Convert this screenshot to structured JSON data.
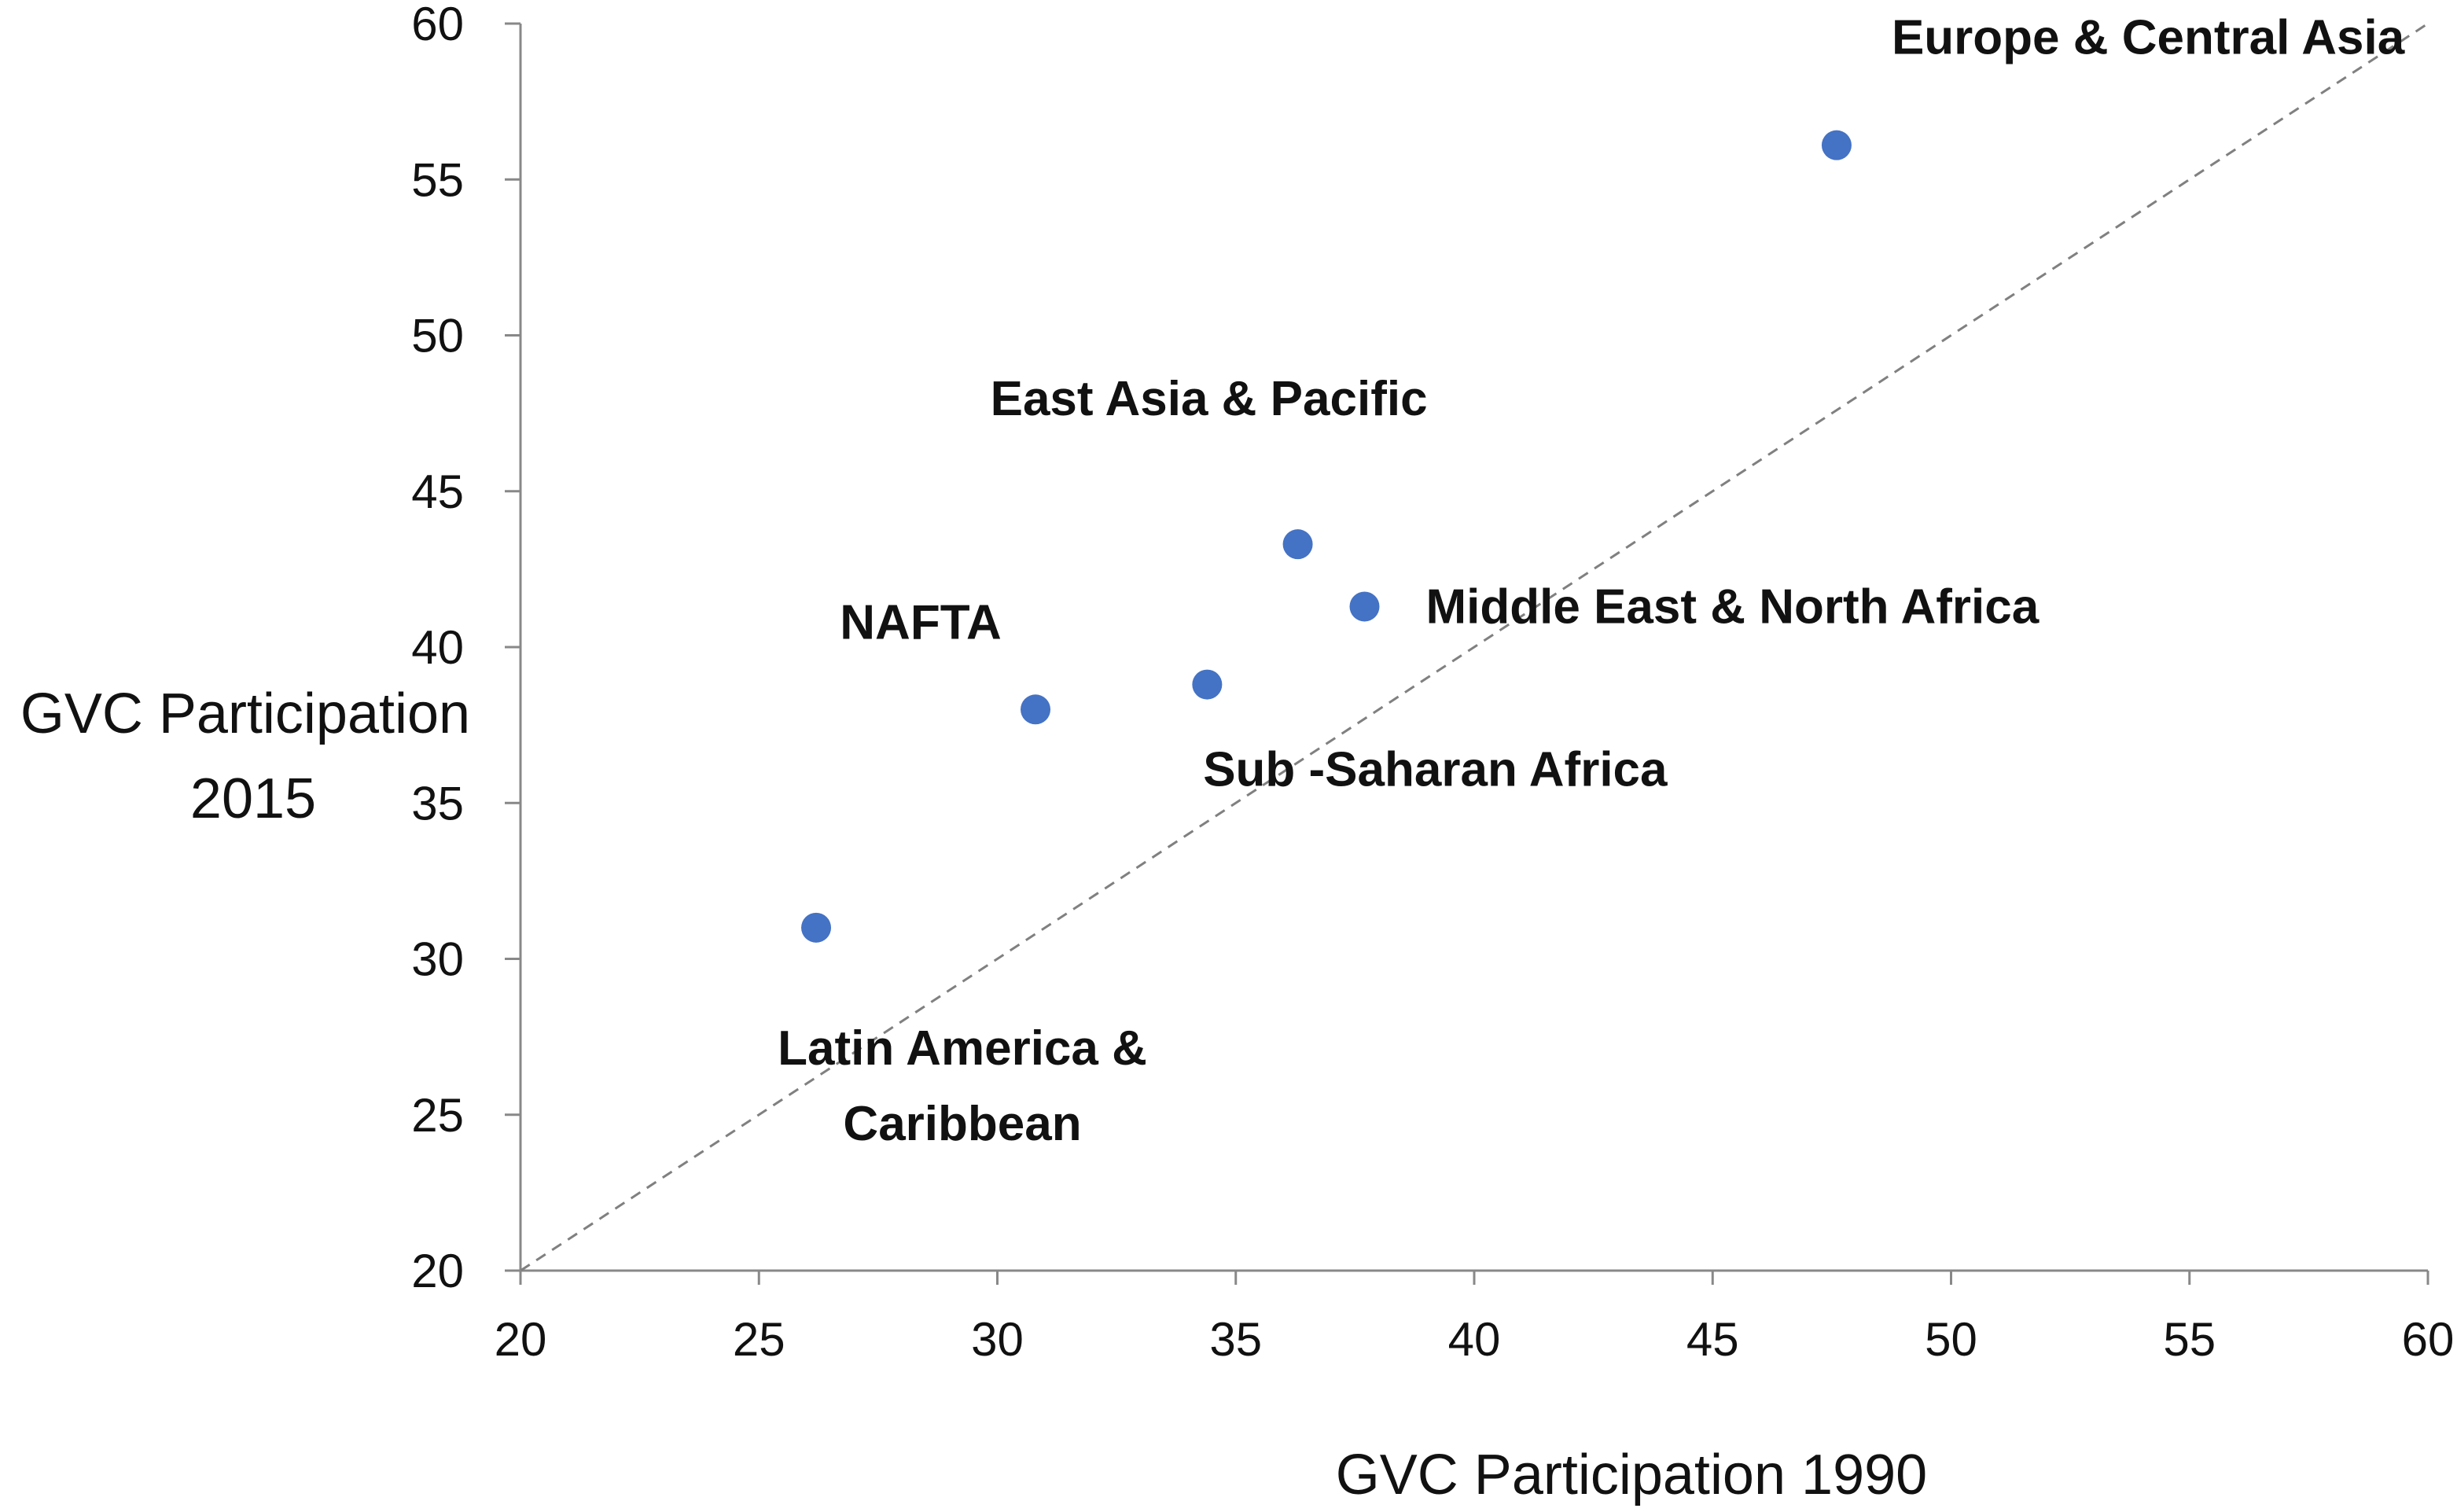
{
  "chart_data": {
    "type": "scatter",
    "xlabel": "GVC Participation 1990",
    "ylabel": [
      "GVC Participation",
      "2015"
    ],
    "xlim": [
      20,
      60
    ],
    "ylim": [
      20,
      60
    ],
    "xticks": [
      20,
      25,
      30,
      35,
      40,
      45,
      50,
      55,
      60
    ],
    "yticks": [
      20,
      25,
      30,
      35,
      40,
      45,
      50,
      55,
      60
    ],
    "grid": false,
    "reference_line": {
      "style": "dashed",
      "from": [
        20,
        20
      ],
      "to": [
        60,
        60
      ]
    },
    "marker_color": "#4472c4",
    "points": [
      {
        "label": [
          "Europe & Central Asia"
        ],
        "x": 47.6,
        "y": 56.1
      },
      {
        "label": [
          "East Asia & Pacific"
        ],
        "x": 36.3,
        "y": 43.3
      },
      {
        "label": [
          "Middle East & North Africa"
        ],
        "x": 37.7,
        "y": 41.3
      },
      {
        "label": [
          "NAFTA"
        ],
        "x": 30.8,
        "y": 38.0
      },
      {
        "label": [
          "Sub -Saharan Africa"
        ],
        "x": 34.4,
        "y": 38.8
      },
      {
        "label": [
          "Latin America &",
          "Caribbean"
        ],
        "x": 26.2,
        "y": 31.0
      }
    ]
  }
}
